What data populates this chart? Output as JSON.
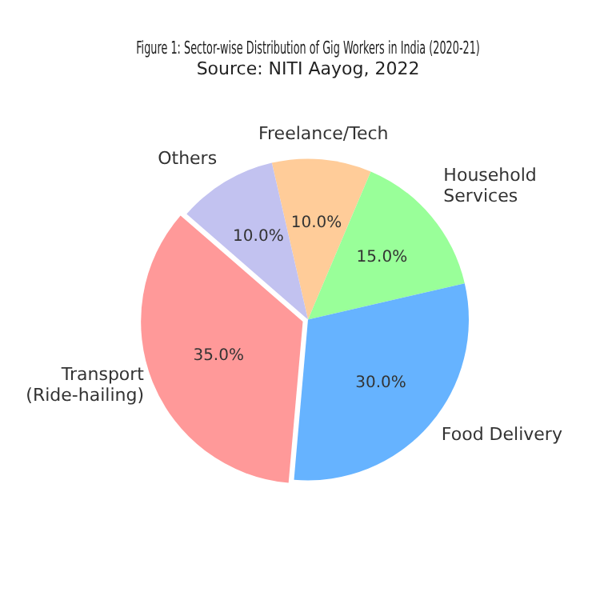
{
  "chart_data": {
    "type": "pie",
    "title": "Figure 1: Sector-wise Distribution of Gig Workers in India (2020-21)",
    "subtitle": "Source: NITI Aayog, 2022",
    "categories": [
      "Freelance/Tech",
      "Household Services",
      "Food Delivery",
      "Transport (Ride-hailing)",
      "Others"
    ],
    "values": [
      10,
      15,
      30,
      35,
      10
    ],
    "colors": [
      "#ffcc99",
      "#99ff99",
      "#66b3ff",
      "#ff9999",
      "#c2c2f0"
    ],
    "value_labels": [
      "10.0%",
      "15.0%",
      "30.0%",
      "35.0%",
      "10.0%"
    ],
    "legend": false
  }
}
